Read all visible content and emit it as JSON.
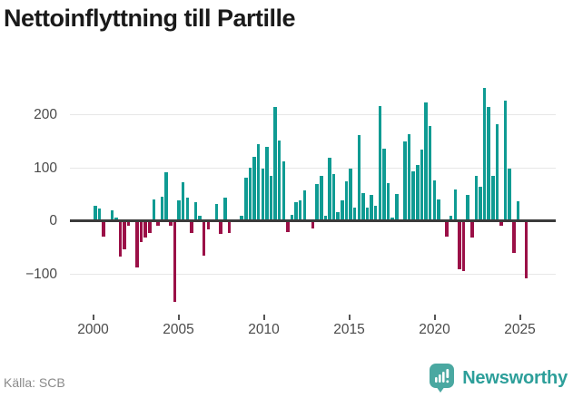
{
  "title": "Nettoinflyttning till Partille",
  "source": "Källa: SCB",
  "branding": {
    "name": "Newsworthy",
    "logo_icon": "bar-chart-exclamation-bubble-icon"
  },
  "colors": {
    "positive_bar": "#0f9b93",
    "negative_bar": "#9b1047",
    "zero_line": "#3b3b3b",
    "gridline": "#e7e7e7",
    "axis_text": "#4a4a4a",
    "title_text": "#1a1a1a",
    "source_text": "#8a8a8a",
    "brand_teal": "#2d9f9a",
    "brand_icon_teal": "#4aa8a1"
  },
  "chart_data": {
    "type": "bar",
    "title": "Nettoinflyttning till Partille",
    "xlabel": "",
    "ylabel": "",
    "frequency": "quarterly",
    "x_start": {
      "year": 2000,
      "quarter": 1
    },
    "x_end": {
      "year": 2025,
      "quarter": 4
    },
    "values": [
      27,
      23,
      -31,
      0,
      19,
      6,
      -69,
      -54,
      -10,
      0,
      -89,
      -41,
      -32,
      -23,
      40,
      -11,
      44,
      91,
      -11,
      -154,
      37,
      72,
      43,
      -24,
      34,
      9,
      -66,
      -17,
      0,
      30,
      -25,
      43,
      -24,
      0,
      0,
      8,
      81,
      100,
      120,
      143,
      97,
      139,
      83,
      213,
      151,
      111,
      -22,
      10,
      34,
      37,
      57,
      0,
      -15,
      69,
      83,
      9,
      118,
      87,
      15,
      38,
      74,
      97,
      24,
      161,
      51,
      24,
      48,
      27,
      216,
      135,
      71,
      6,
      50,
      0,
      149,
      162,
      92,
      105,
      134,
      222,
      178,
      76,
      39,
      0,
      -30,
      8,
      59,
      -92,
      -95,
      48,
      -33,
      83,
      63,
      249,
      214,
      84,
      182,
      -11,
      226,
      98,
      -62,
      36,
      0,
      -110
    ],
    "series_note": "positive values teal, negative values maroon",
    "x_tick_labels": [
      "2000",
      "2005",
      "2010",
      "2015",
      "2020",
      "2025"
    ],
    "y_ticks": [
      {
        "value": 200,
        "label": "200"
      },
      {
        "value": 100,
        "label": "100"
      },
      {
        "value": 0,
        "label": "0"
      },
      {
        "value": -100,
        "label": "−100"
      }
    ],
    "ylim": [
      -170,
      260
    ],
    "grid": true,
    "legend": false
  }
}
